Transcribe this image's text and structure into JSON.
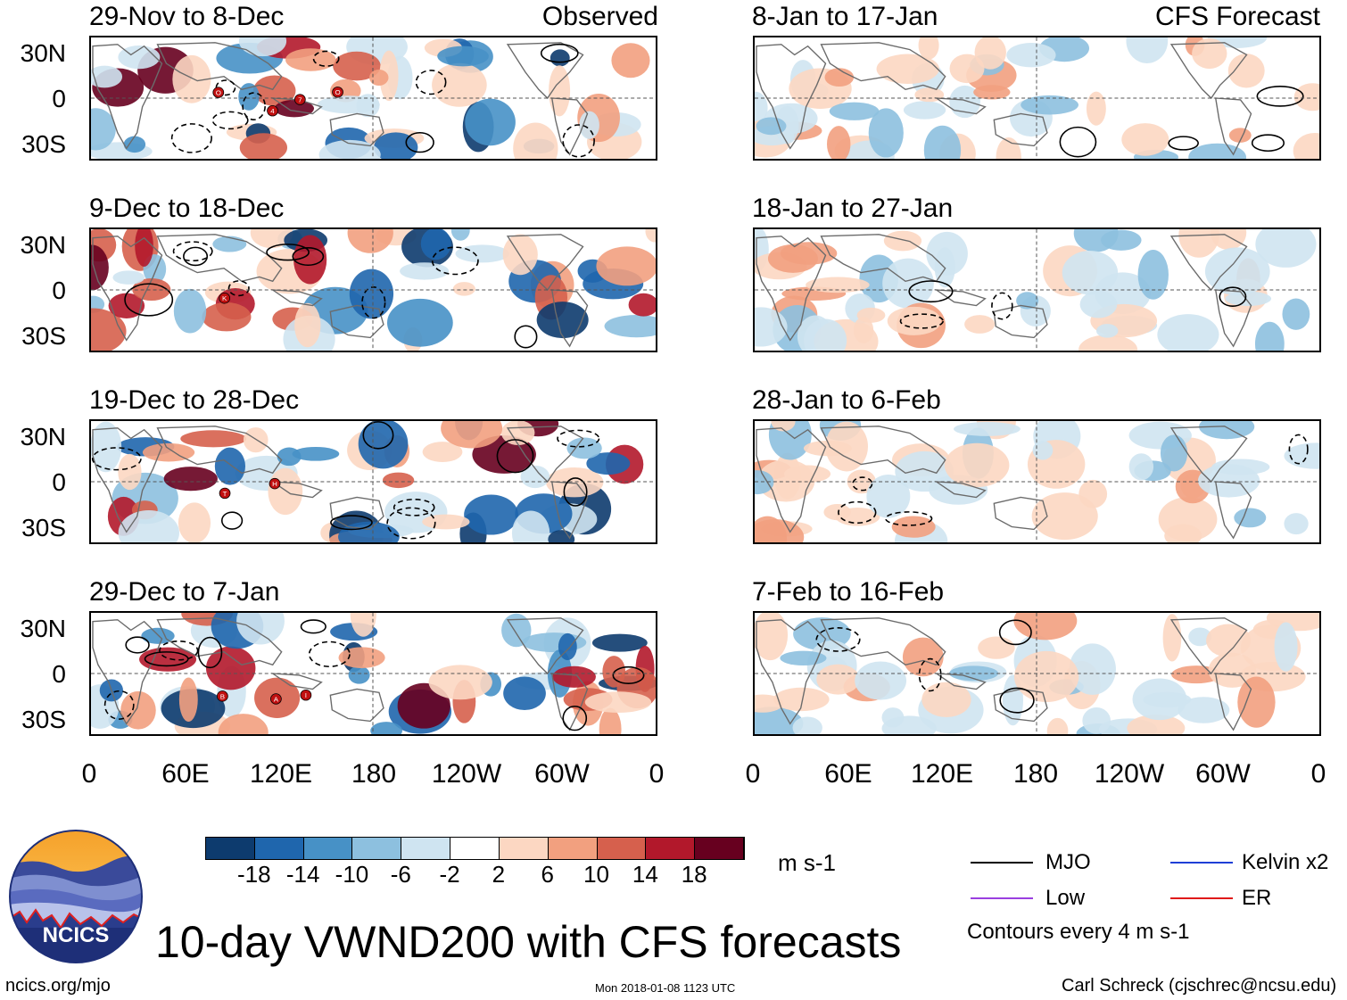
{
  "left_column": {
    "tag": "Observed",
    "panels": [
      {
        "title": "29-Nov to 8-Dec"
      },
      {
        "title": "9-Dec to 18-Dec"
      },
      {
        "title": "19-Dec to 28-Dec"
      },
      {
        "title": "29-Dec to 7-Jan"
      }
    ]
  },
  "right_column": {
    "tag": "CFS Forecast",
    "panels": [
      {
        "title": "8-Jan to 17-Jan"
      },
      {
        "title": "18-Jan to 27-Jan"
      },
      {
        "title": "28-Jan to 6-Feb"
      },
      {
        "title": "7-Feb to 16-Feb"
      }
    ]
  },
  "lat_labels": [
    "30N",
    "0",
    "30S"
  ],
  "lon_labels": [
    "0",
    "60E",
    "120E",
    "180",
    "120W",
    "60W",
    "0"
  ],
  "storm_markers": [
    {
      "panel": 0,
      "letters": [
        "O",
        "4",
        "7",
        "O"
      ]
    },
    {
      "panel": 1,
      "letters": [
        "K"
      ]
    },
    {
      "panel": 2,
      "letters": [
        "T",
        "H"
      ]
    },
    {
      "panel": 3,
      "letters": [
        "B",
        "A",
        "I"
      ]
    }
  ],
  "colorbar": {
    "ticks": [
      "-18",
      "-14",
      "-10",
      "-6",
      "-2",
      "2",
      "6",
      "10",
      "14",
      "18"
    ],
    "colors": [
      "#0d3b6e",
      "#1f66ad",
      "#4791c6",
      "#8dc0df",
      "#cfe4f1",
      "#ffffff",
      "#fcd7c2",
      "#f2a07f",
      "#d6604d",
      "#b2182b",
      "#67001f"
    ],
    "units": "m s-1"
  },
  "legend": {
    "items": [
      {
        "label": "MJO",
        "color": "#000000"
      },
      {
        "label": "Kelvin x2",
        "color": "#1f3fd6"
      },
      {
        "label": "Low",
        "color": "#9a3fe0"
      },
      {
        "label": "ER",
        "color": "#e01a1a"
      }
    ],
    "note": "Contours every 4 m s-1"
  },
  "logo": {
    "text": "NCICS"
  },
  "title": "10-day VWND200 with CFS forecasts",
  "footer": {
    "url": "ncics.org/mjo",
    "timestamp": "Mon 2018-01-08 1123 UTC",
    "credit": "Carl Schreck (cjschrec@ncsu.edu)"
  }
}
